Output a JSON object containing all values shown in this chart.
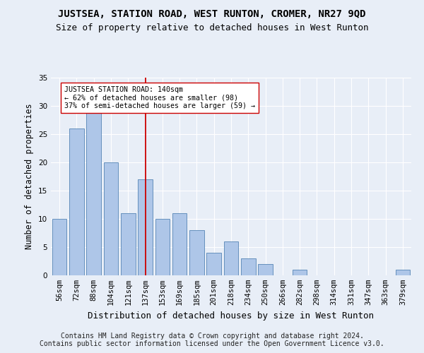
{
  "title": "JUSTSEA, STATION ROAD, WEST RUNTON, CROMER, NR27 9QD",
  "subtitle": "Size of property relative to detached houses in West Runton",
  "xlabel": "Distribution of detached houses by size in West Runton",
  "ylabel": "Number of detached properties",
  "categories": [
    "56sqm",
    "72sqm",
    "88sqm",
    "104sqm",
    "121sqm",
    "137sqm",
    "153sqm",
    "169sqm",
    "185sqm",
    "201sqm",
    "218sqm",
    "234sqm",
    "250sqm",
    "266sqm",
    "282sqm",
    "298sqm",
    "314sqm",
    "331sqm",
    "347sqm",
    "363sqm",
    "379sqm"
  ],
  "values": [
    10,
    26,
    29,
    20,
    11,
    17,
    10,
    11,
    8,
    4,
    6,
    3,
    2,
    0,
    1,
    0,
    0,
    0,
    0,
    0,
    1
  ],
  "bar_color": "#aec6e8",
  "bar_edgecolor": "#5585b5",
  "property_size_index": 5,
  "vline_color": "#cc0000",
  "annotation_text": "JUSTSEA STATION ROAD: 140sqm\n← 62% of detached houses are smaller (98)\n37% of semi-detached houses are larger (59) →",
  "annotation_box_edgecolor": "#cc0000",
  "ylim": [
    0,
    35
  ],
  "yticks": [
    0,
    5,
    10,
    15,
    20,
    25,
    30,
    35
  ],
  "footer": "Contains HM Land Registry data © Crown copyright and database right 2024.\nContains public sector information licensed under the Open Government Licence v3.0.",
  "bg_color": "#e8eef7",
  "title_fontsize": 10,
  "subtitle_fontsize": 9,
  "xlabel_fontsize": 9,
  "ylabel_fontsize": 8.5,
  "footer_fontsize": 7,
  "tick_fontsize": 7.5
}
